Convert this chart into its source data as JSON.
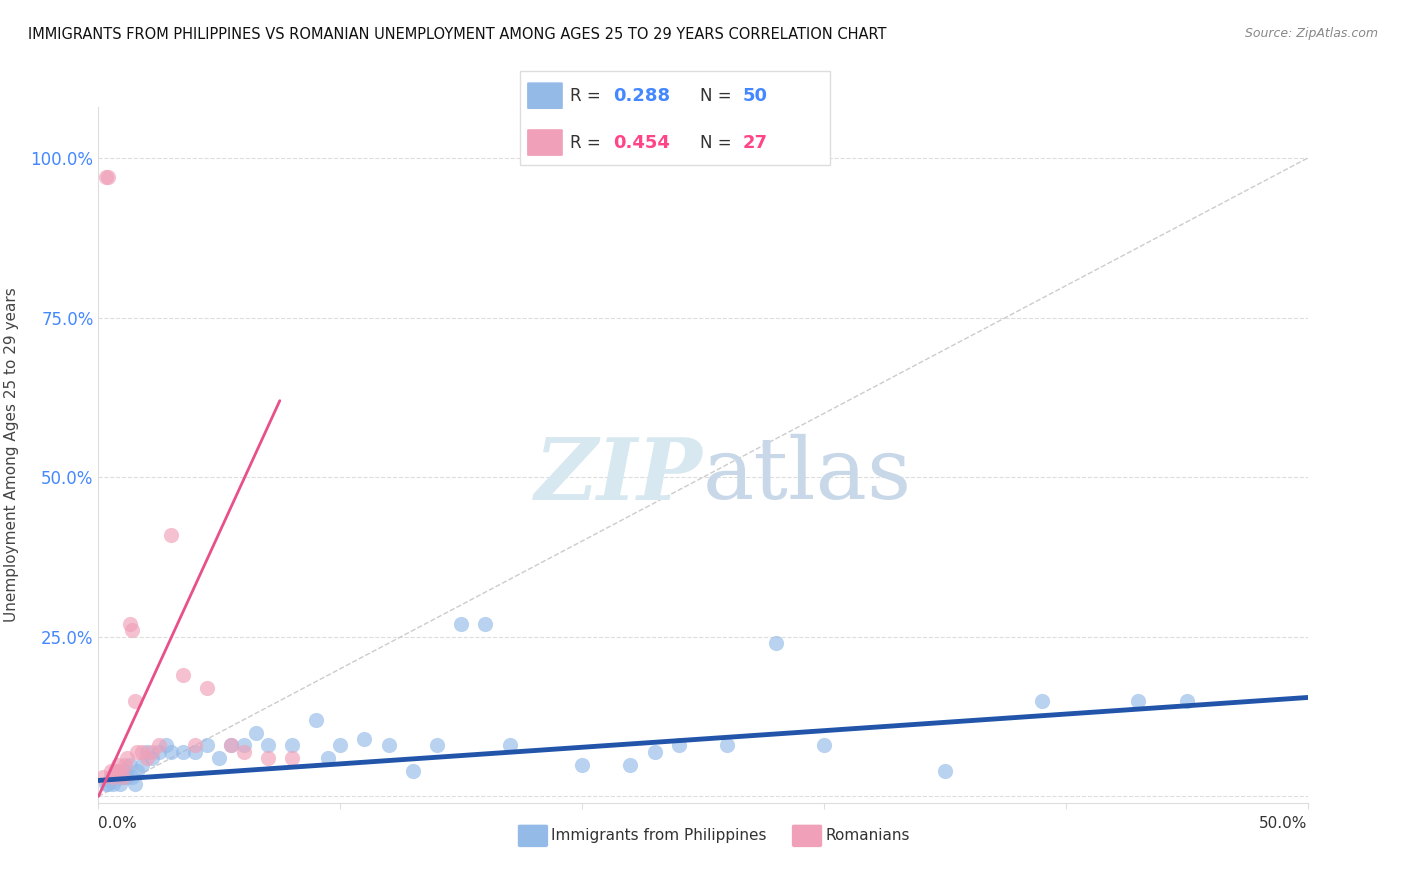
{
  "title": "IMMIGRANTS FROM PHILIPPINES VS ROMANIAN UNEMPLOYMENT AMONG AGES 25 TO 29 YEARS CORRELATION CHART",
  "source": "Source: ZipAtlas.com",
  "ylabel": "Unemployment Among Ages 25 to 29 years",
  "ytick_labels": [
    "",
    "25.0%",
    "50.0%",
    "75.0%",
    "100.0%"
  ],
  "ytick_values": [
    0,
    0.25,
    0.5,
    0.75,
    1.0
  ],
  "xlim": [
    0,
    0.5
  ],
  "ylim": [
    -0.01,
    1.08
  ],
  "legend_r1": "R = 0.288",
  "legend_n1": "N = 50",
  "legend_r2": "R = 0.454",
  "legend_n2": "N = 27",
  "legend_label1": "Immigrants from Philippines",
  "legend_label2": "Romanians",
  "blue_color": "#94BAE8",
  "pink_color": "#F0A0B8",
  "blue_line_color": "#2255AA",
  "pink_line_color": "#E8508A",
  "text_blue": "#4488FF",
  "text_pink": "#FF4488",
  "blue_scatter_x": [
    0.003,
    0.004,
    0.005,
    0.006,
    0.007,
    0.008,
    0.009,
    0.01,
    0.011,
    0.012,
    0.013,
    0.014,
    0.015,
    0.016,
    0.018,
    0.02,
    0.022,
    0.025,
    0.028,
    0.03,
    0.035,
    0.04,
    0.045,
    0.05,
    0.055,
    0.06,
    0.065,
    0.07,
    0.08,
    0.09,
    0.095,
    0.1,
    0.11,
    0.12,
    0.13,
    0.14,
    0.15,
    0.16,
    0.17,
    0.2,
    0.22,
    0.23,
    0.24,
    0.26,
    0.28,
    0.3,
    0.35,
    0.39,
    0.43,
    0.45
  ],
  "blue_scatter_y": [
    0.02,
    0.02,
    0.03,
    0.02,
    0.03,
    0.04,
    0.02,
    0.03,
    0.04,
    0.03,
    0.05,
    0.03,
    0.02,
    0.04,
    0.05,
    0.07,
    0.06,
    0.07,
    0.08,
    0.07,
    0.07,
    0.07,
    0.08,
    0.06,
    0.08,
    0.08,
    0.1,
    0.08,
    0.08,
    0.12,
    0.06,
    0.08,
    0.09,
    0.08,
    0.04,
    0.08,
    0.27,
    0.27,
    0.08,
    0.05,
    0.05,
    0.07,
    0.08,
    0.08,
    0.24,
    0.08,
    0.04,
    0.15,
    0.15,
    0.15
  ],
  "pink_scatter_x": [
    0.002,
    0.003,
    0.004,
    0.005,
    0.006,
    0.007,
    0.008,
    0.009,
    0.01,
    0.011,
    0.012,
    0.013,
    0.014,
    0.015,
    0.016,
    0.018,
    0.02,
    0.022,
    0.025,
    0.03,
    0.035,
    0.04,
    0.045,
    0.055,
    0.06,
    0.07,
    0.08
  ],
  "pink_scatter_y": [
    0.03,
    0.97,
    0.97,
    0.04,
    0.03,
    0.04,
    0.05,
    0.04,
    0.03,
    0.05,
    0.06,
    0.27,
    0.26,
    0.15,
    0.07,
    0.07,
    0.06,
    0.07,
    0.08,
    0.41,
    0.19,
    0.08,
    0.17,
    0.08,
    0.07,
    0.06,
    0.06
  ],
  "blue_trend_x": [
    0.0,
    0.5
  ],
  "blue_trend_y": [
    0.025,
    0.155
  ],
  "pink_trend_x": [
    0.0,
    0.075
  ],
  "pink_trend_y": [
    0.0,
    0.62
  ],
  "diag_line_x": [
    0.0,
    0.5
  ],
  "diag_line_y": [
    0.0,
    1.0
  ],
  "grid_color": "#DDDDDD",
  "watermark_color": "#D8E8F0"
}
